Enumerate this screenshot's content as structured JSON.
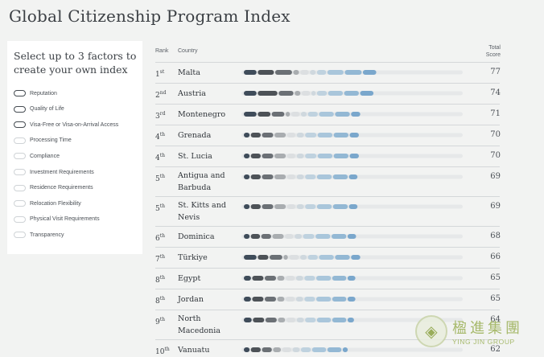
{
  "page": {
    "title": "Global Citizenship Program Index"
  },
  "filter_panel": {
    "heading": "Select up to 3 factors to create your own index",
    "factors": [
      {
        "label": "Reputation",
        "selected": true
      },
      {
        "label": "Quality of Life",
        "selected": true
      },
      {
        "label": "Visa-Free or Visa-on-Arrival Access",
        "selected": true
      },
      {
        "label": "Processing Time",
        "selected": false
      },
      {
        "label": "Compliance",
        "selected": false
      },
      {
        "label": "Investment Requirements",
        "selected": false
      },
      {
        "label": "Residence Requirements",
        "selected": false
      },
      {
        "label": "Relocation Flexibility",
        "selected": false
      },
      {
        "label": "Physical Visit Requirements",
        "selected": false
      },
      {
        "label": "Transparency",
        "selected": false
      }
    ]
  },
  "table": {
    "headers": {
      "rank": "Rank",
      "country": "Country",
      "total": "Total Score"
    },
    "segment_colors": [
      "#3f4c5a",
      "#4d5257",
      "#6b7075",
      "#a9adb0",
      "#dcdfe1",
      "#cfd8de",
      "#bfd2df",
      "#a9c6db",
      "#93b8d4",
      "#7aa7cc"
    ],
    "track_color": "#e6e8e9",
    "rows": [
      {
        "rank": "1",
        "suffix": "st",
        "country": "Malta",
        "score": "77",
        "segments": [
          2.0,
          2.5,
          2.6,
          1.0,
          1.4,
          1.0,
          1.5,
          2.5,
          2.6,
          2.1
        ]
      },
      {
        "rank": "2",
        "suffix": "nd",
        "country": "Austria",
        "score": "74",
        "segments": [
          2.0,
          3.0,
          2.3,
          1.0,
          1.4,
          0.8,
          1.6,
          2.3,
          2.3,
          2.1
        ]
      },
      {
        "rank": "3",
        "suffix": "rd",
        "country": "Montenegro",
        "score": "71",
        "segments": [
          2.0,
          2.0,
          2.0,
          0.8,
          1.4,
          1.0,
          1.6,
          2.3,
          2.3,
          1.5
        ]
      },
      {
        "rank": "4",
        "suffix": "th",
        "country": "Grenada",
        "score": "70",
        "segments": [
          1.0,
          1.6,
          1.8,
          1.8,
          1.4,
          1.2,
          1.8,
          2.3,
          2.3,
          1.5
        ]
      },
      {
        "rank": "4",
        "suffix": "th",
        "country": "St. Lucia",
        "score": "70",
        "segments": [
          1.0,
          1.6,
          1.8,
          1.8,
          1.4,
          1.2,
          1.8,
          2.3,
          2.3,
          1.5
        ]
      },
      {
        "rank": "5",
        "suffix": "th",
        "country": "Antigua and Barbuda",
        "score": "69",
        "segments": [
          1.0,
          1.6,
          1.8,
          1.8,
          1.4,
          1.2,
          1.7,
          2.3,
          2.3,
          1.4
        ]
      },
      {
        "rank": "5",
        "suffix": "th",
        "country": "St. Kitts and Nevis",
        "score": "69",
        "segments": [
          1.0,
          1.6,
          1.8,
          1.8,
          1.4,
          1.2,
          1.7,
          2.3,
          2.3,
          1.4
        ]
      },
      {
        "rank": "6",
        "suffix": "th",
        "country": "Dominica",
        "score": "68",
        "segments": [
          1.0,
          1.5,
          1.6,
          1.8,
          1.4,
          1.2,
          1.8,
          2.3,
          2.3,
          1.4
        ]
      },
      {
        "rank": "7",
        "suffix": "th",
        "country": "Türkiye",
        "score": "66",
        "segments": [
          2.0,
          1.7,
          2.0,
          0.8,
          1.6,
          1.1,
          1.6,
          2.3,
          2.3,
          1.5
        ]
      },
      {
        "rank": "8",
        "suffix": "th",
        "country": "Egypt",
        "score": "65",
        "segments": [
          1.2,
          1.8,
          1.8,
          1.2,
          1.5,
          1.2,
          1.7,
          2.3,
          2.2,
          1.3
        ]
      },
      {
        "rank": "8",
        "suffix": "th",
        "country": "Jordan",
        "score": "65",
        "segments": [
          1.2,
          1.8,
          1.8,
          1.2,
          1.5,
          1.2,
          1.7,
          2.3,
          2.2,
          1.3
        ]
      },
      {
        "rank": "9",
        "suffix": "th",
        "country": "North Macedonia",
        "score": "64",
        "segments": [
          1.3,
          1.8,
          1.8,
          1.2,
          1.5,
          1.2,
          1.7,
          2.2,
          2.2,
          1.1
        ]
      },
      {
        "rank": "10",
        "suffix": "th",
        "country": "Vanuatu",
        "score": "62",
        "segments": [
          1.0,
          1.6,
          1.6,
          1.3,
          1.5,
          1.2,
          1.6,
          2.2,
          2.2,
          0.9
        ]
      }
    ]
  },
  "watermark": {
    "name_cn": "楹進集團",
    "name_en": "YING JIN GROUP",
    "icon": "yingjin-logo-icon"
  }
}
